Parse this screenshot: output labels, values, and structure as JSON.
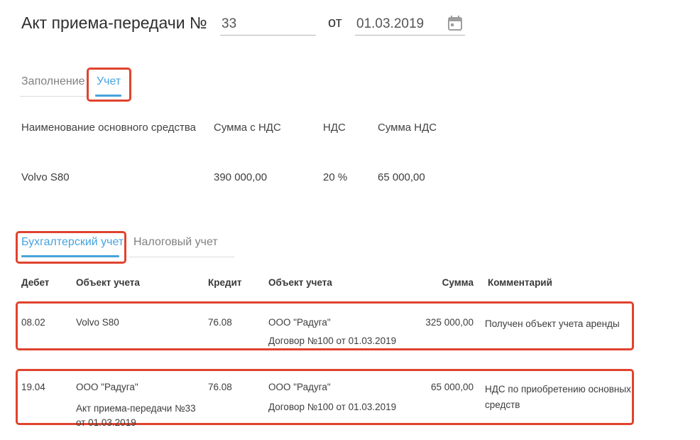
{
  "header": {
    "title_label": "Акт приема-передачи №",
    "number_value": "33",
    "date_preposition": "от",
    "date_value": "01.03.2019",
    "calendar_icon": "calendar-icon"
  },
  "tabs": [
    {
      "label": "Заполнение",
      "active": false
    },
    {
      "label": "Учет",
      "active": true,
      "annotated": true
    }
  ],
  "assets_table": {
    "columns": [
      "Наименование основного средства",
      "Сумма с НДС",
      "НДС",
      "Сумма НДС"
    ],
    "rows": [
      {
        "name": "Volvo S80",
        "amount_with_vat": "390 000,00",
        "vat_rate": "20 %",
        "vat_amount": "65 000,00"
      }
    ]
  },
  "accounting_tabs": [
    {
      "label": "Бухгалтерский учет",
      "active": true,
      "annotated": true
    },
    {
      "label": "Налоговый учет",
      "active": false
    }
  ],
  "postings_table": {
    "columns": [
      "Дебет",
      "Объект учета",
      "Кредит",
      "Объект учета",
      "Сумма",
      "Комментарий"
    ],
    "rows": [
      {
        "debit": "08.02",
        "debit_object": "Volvo S80",
        "debit_object_detail": "",
        "credit": "76.08",
        "credit_object": "ООО \"Радуга\"",
        "credit_object_detail": "Договор №100 от 01.03.2019",
        "amount": "325 000,00",
        "comment": "Получен объект учета аренды",
        "annotated": true
      },
      {
        "debit": "19.04",
        "debit_object": "ООО \"Радуга\"",
        "debit_object_detail": "Акт приема-передачи №33 от 01.03.2019",
        "credit": "76.08",
        "credit_object": "ООО \"Радуга\"",
        "credit_object_detail": "Договор №100 от 01.03.2019",
        "amount": "65 000,00",
        "comment": "НДС по приобретению основных средств",
        "annotated": true
      }
    ]
  },
  "colors": {
    "accent_blue": "#47a3dc",
    "annotation_red": "#e0432e",
    "underline_gray": "#b5b5b5"
  }
}
